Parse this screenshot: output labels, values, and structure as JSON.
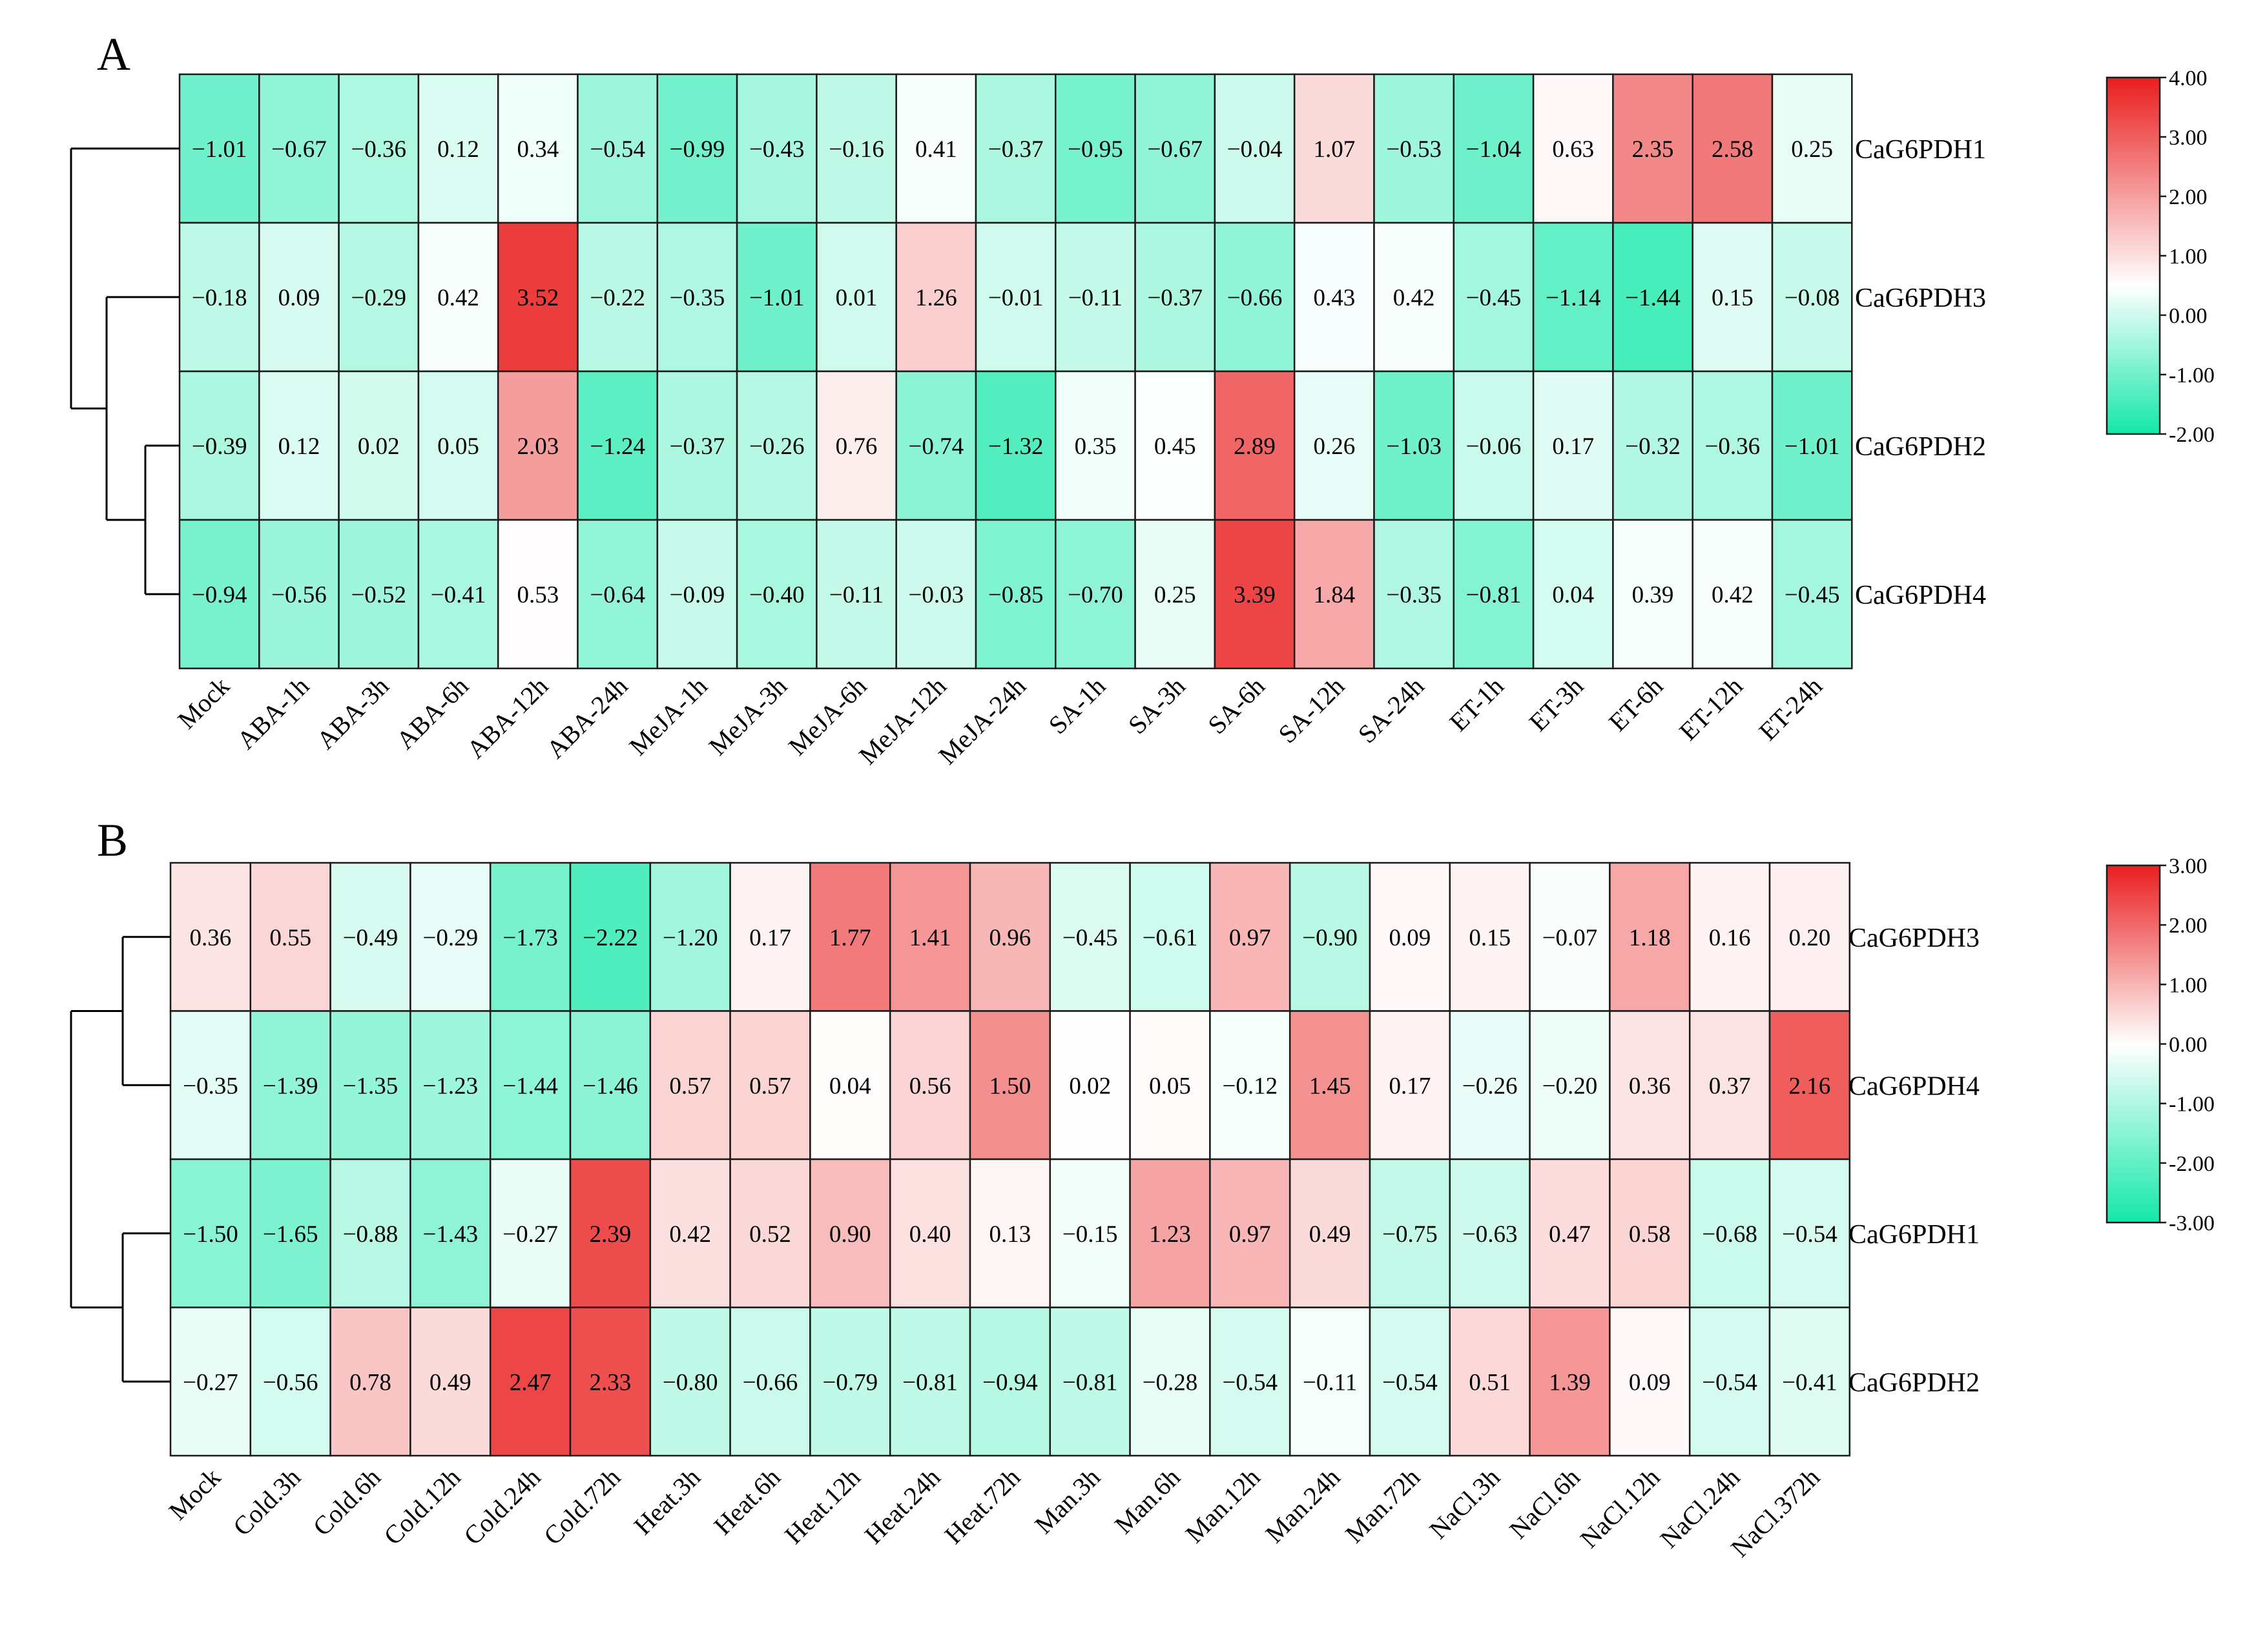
{
  "colors": {
    "low": "#13e8a9",
    "mid": "#ffffff",
    "high": "#e91e1e",
    "grid": "#1a1a1a",
    "dendrogram": "#000000"
  },
  "chart_data": [
    {
      "type": "heatmap",
      "panel": "A",
      "rows": [
        "CaG6PDH1",
        "CaG6PDH3",
        "CaG6PDH2",
        "CaG6PDH4"
      ],
      "columns": [
        "Mock",
        "ABA-1h",
        "ABA-3h",
        "ABA-6h",
        "ABA-12h",
        "ABA-24h",
        "MeJA-1h",
        "MeJA-3h",
        "MeJA-6h",
        "MeJA-12h",
        "MeJA-24h",
        "SA-1h",
        "SA-3h",
        "SA-6h",
        "SA-12h",
        "SA-24h",
        "ET-1h",
        "ET-3h",
        "ET-6h",
        "ET-12h",
        "ET-24h"
      ],
      "values": [
        [
          -1.01,
          -0.67,
          -0.36,
          0.12,
          0.34,
          -0.54,
          -0.99,
          -0.43,
          -0.16,
          0.41,
          -0.37,
          -0.95,
          -0.67,
          -0.04,
          1.07,
          -0.53,
          -1.04,
          0.63,
          2.35,
          2.58,
          0.25
        ],
        [
          -0.18,
          0.09,
          -0.29,
          0.42,
          3.52,
          -0.22,
          -0.35,
          -1.01,
          0.01,
          1.26,
          -0.01,
          -0.11,
          -0.37,
          -0.66,
          0.43,
          0.42,
          -0.45,
          -1.14,
          -1.44,
          0.15,
          -0.08
        ],
        [
          -0.39,
          0.12,
          0.02,
          0.05,
          2.03,
          -1.24,
          -0.37,
          -0.26,
          0.76,
          -0.74,
          -1.32,
          0.35,
          0.45,
          2.89,
          0.26,
          -1.03,
          -0.06,
          0.17,
          -0.32,
          -0.36,
          -1.01
        ],
        [
          -0.94,
          -0.56,
          -0.52,
          -0.41,
          0.53,
          -0.64,
          -0.09,
          -0.4,
          -0.11,
          -0.03,
          -0.85,
          -0.7,
          0.25,
          3.39,
          1.84,
          -0.35,
          -0.81,
          0.04,
          0.39,
          0.42,
          -0.45
        ]
      ],
      "value_labels": [
        [
          "−1.01",
          "−0.67",
          "−0.36",
          "0.12",
          "0.34",
          "−0.54",
          "−0.99",
          "−0.43",
          "−0.16",
          "0.41",
          "−0.37",
          "−0.95",
          "−0.67",
          "−0.04",
          "1.07",
          "−0.53",
          "−1.04",
          "0.63",
          "2.35",
          "2.58",
          "0.25"
        ],
        [
          "−0.18",
          "0.09",
          "−0.29",
          "0.42",
          "3.52",
          "−0.22",
          "−0.35",
          "−1.01",
          "0.01",
          "1.26",
          "−0.01",
          "−0.11",
          "−0.37",
          "−0.66",
          "0.43",
          "0.42",
          "−0.45",
          "−1.14",
          "−1.44",
          "0.15",
          "−0.08"
        ],
        [
          "−0.39",
          "0.12",
          "0.02",
          "0.05",
          "2.03",
          "−1.24",
          "−0.37",
          "−0.26",
          "0.76",
          "−0.74",
          "−1.32",
          "0.35",
          "0.45",
          "2.89",
          "0.26",
          "−1.03",
          "−0.06",
          "0.17",
          "−0.32",
          "−0.36",
          "−1.01"
        ],
        [
          "−0.94",
          "−0.56",
          "−0.52",
          "−0.41",
          "0.53",
          "−0.64",
          "−0.09",
          "−0.40",
          "−0.11",
          "−0.03",
          "−0.85",
          "−0.70",
          "0.25",
          "3.39",
          "1.84",
          "−0.35",
          "−0.81",
          "0.04",
          "0.39",
          "0.42",
          "−0.45"
        ]
      ],
      "color_scale": {
        "min": -2.0,
        "mid": 0.5,
        "max": 4.0,
        "tick_values": [
          4.0,
          3.0,
          2.0,
          1.0,
          0.0,
          -1.0,
          -2.0
        ],
        "tick_labels": [
          "4.00",
          "3.00",
          "2.00",
          "1.00",
          "0.00",
          "-1.00",
          "-2.00"
        ]
      },
      "dendrogram": "((CaG6PDH1),(CaG6PDH3,(CaG6PDH2,CaG6PDH4)))"
    },
    {
      "type": "heatmap",
      "panel": "B",
      "rows": [
        "CaG6PDH3",
        "CaG6PDH4",
        "CaG6PDH1",
        "CaG6PDH2"
      ],
      "columns": [
        "Mock",
        "Cold.3h",
        "Cold.6h",
        "Cold.12h",
        "Cold.24h",
        "Cold.72h",
        "Heat.3h",
        "Heat.6h",
        "Heat.12h",
        "Heat.24h",
        "Heat.72h",
        "Man.3h",
        "Man.6h",
        "Man.12h",
        "Man.24h",
        "Man.72h",
        "NaCl.3h",
        "NaCl.6h",
        "NaCl.12h",
        "NaCl.24h",
        "NaCl.372h"
      ],
      "values": [
        [
          0.36,
          0.55,
          -0.49,
          -0.29,
          -1.73,
          -2.22,
          -1.2,
          0.17,
          1.77,
          1.41,
          0.96,
          -0.45,
          -0.61,
          0.97,
          -0.9,
          0.09,
          0.15,
          -0.07,
          1.18,
          0.16,
          0.2
        ],
        [
          -0.35,
          -1.39,
          -1.35,
          -1.23,
          -1.44,
          -1.46,
          0.57,
          0.57,
          0.04,
          0.56,
          1.5,
          0.02,
          0.05,
          -0.12,
          1.45,
          0.17,
          -0.26,
          -0.2,
          0.36,
          0.37,
          2.16
        ],
        [
          -1.5,
          -1.65,
          -0.88,
          -1.43,
          -0.27,
          2.39,
          0.42,
          0.52,
          0.9,
          0.4,
          0.13,
          -0.15,
          1.23,
          0.97,
          0.49,
          -0.75,
          -0.63,
          0.47,
          0.58,
          -0.68,
          -0.54
        ],
        [
          -0.27,
          -0.56,
          0.78,
          0.49,
          2.47,
          2.33,
          -0.8,
          -0.66,
          -0.79,
          -0.81,
          -0.94,
          -0.81,
          -0.28,
          -0.54,
          -0.11,
          -0.54,
          0.51,
          1.39,
          0.09,
          -0.54,
          -0.41
        ]
      ],
      "value_labels": [
        [
          "0.36",
          "0.55",
          "−0.49",
          "−0.29",
          "−1.73",
          "−2.22",
          "−1.20",
          "0.17",
          "1.77",
          "1.41",
          "0.96",
          "−0.45",
          "−0.61",
          "0.97",
          "−0.90",
          "0.09",
          "0.15",
          "−0.07",
          "1.18",
          "0.16",
          "0.20"
        ],
        [
          "−0.35",
          "−1.39",
          "−1.35",
          "−1.23",
          "−1.44",
          "−1.46",
          "0.57",
          "0.57",
          "0.04",
          "0.56",
          "1.50",
          "0.02",
          "0.05",
          "−0.12",
          "1.45",
          "0.17",
          "−0.26",
          "−0.20",
          "0.36",
          "0.37",
          "2.16"
        ],
        [
          "−1.50",
          "−1.65",
          "−0.88",
          "−1.43",
          "−0.27",
          "2.39",
          "0.42",
          "0.52",
          "0.90",
          "0.40",
          "0.13",
          "−0.15",
          "1.23",
          "0.97",
          "0.49",
          "−0.75",
          "−0.63",
          "0.47",
          "0.58",
          "−0.68",
          "−0.54"
        ],
        [
          "−0.27",
          "−0.56",
          "0.78",
          "0.49",
          "2.47",
          "2.33",
          "−0.80",
          "−0.66",
          "−0.79",
          "−0.81",
          "−0.94",
          "−0.81",
          "−0.28",
          "−0.54",
          "−0.11",
          "−0.54",
          "0.51",
          "1.39",
          "0.09",
          "−0.54",
          "−0.41"
        ]
      ],
      "color_scale": {
        "min": -3.0,
        "mid": 0.0,
        "max": 3.0,
        "tick_values": [
          3.0,
          2.0,
          1.0,
          0.0,
          -1.0,
          -2.0,
          -3.0
        ],
        "tick_labels": [
          "3.00",
          "2.00",
          "1.00",
          "0.00",
          "-1.00",
          "-2.00",
          "-3.00"
        ]
      },
      "dendrogram": "((CaG6PDH3,CaG6PDH4),(CaG6PDH1,CaG6PDH2))"
    }
  ]
}
